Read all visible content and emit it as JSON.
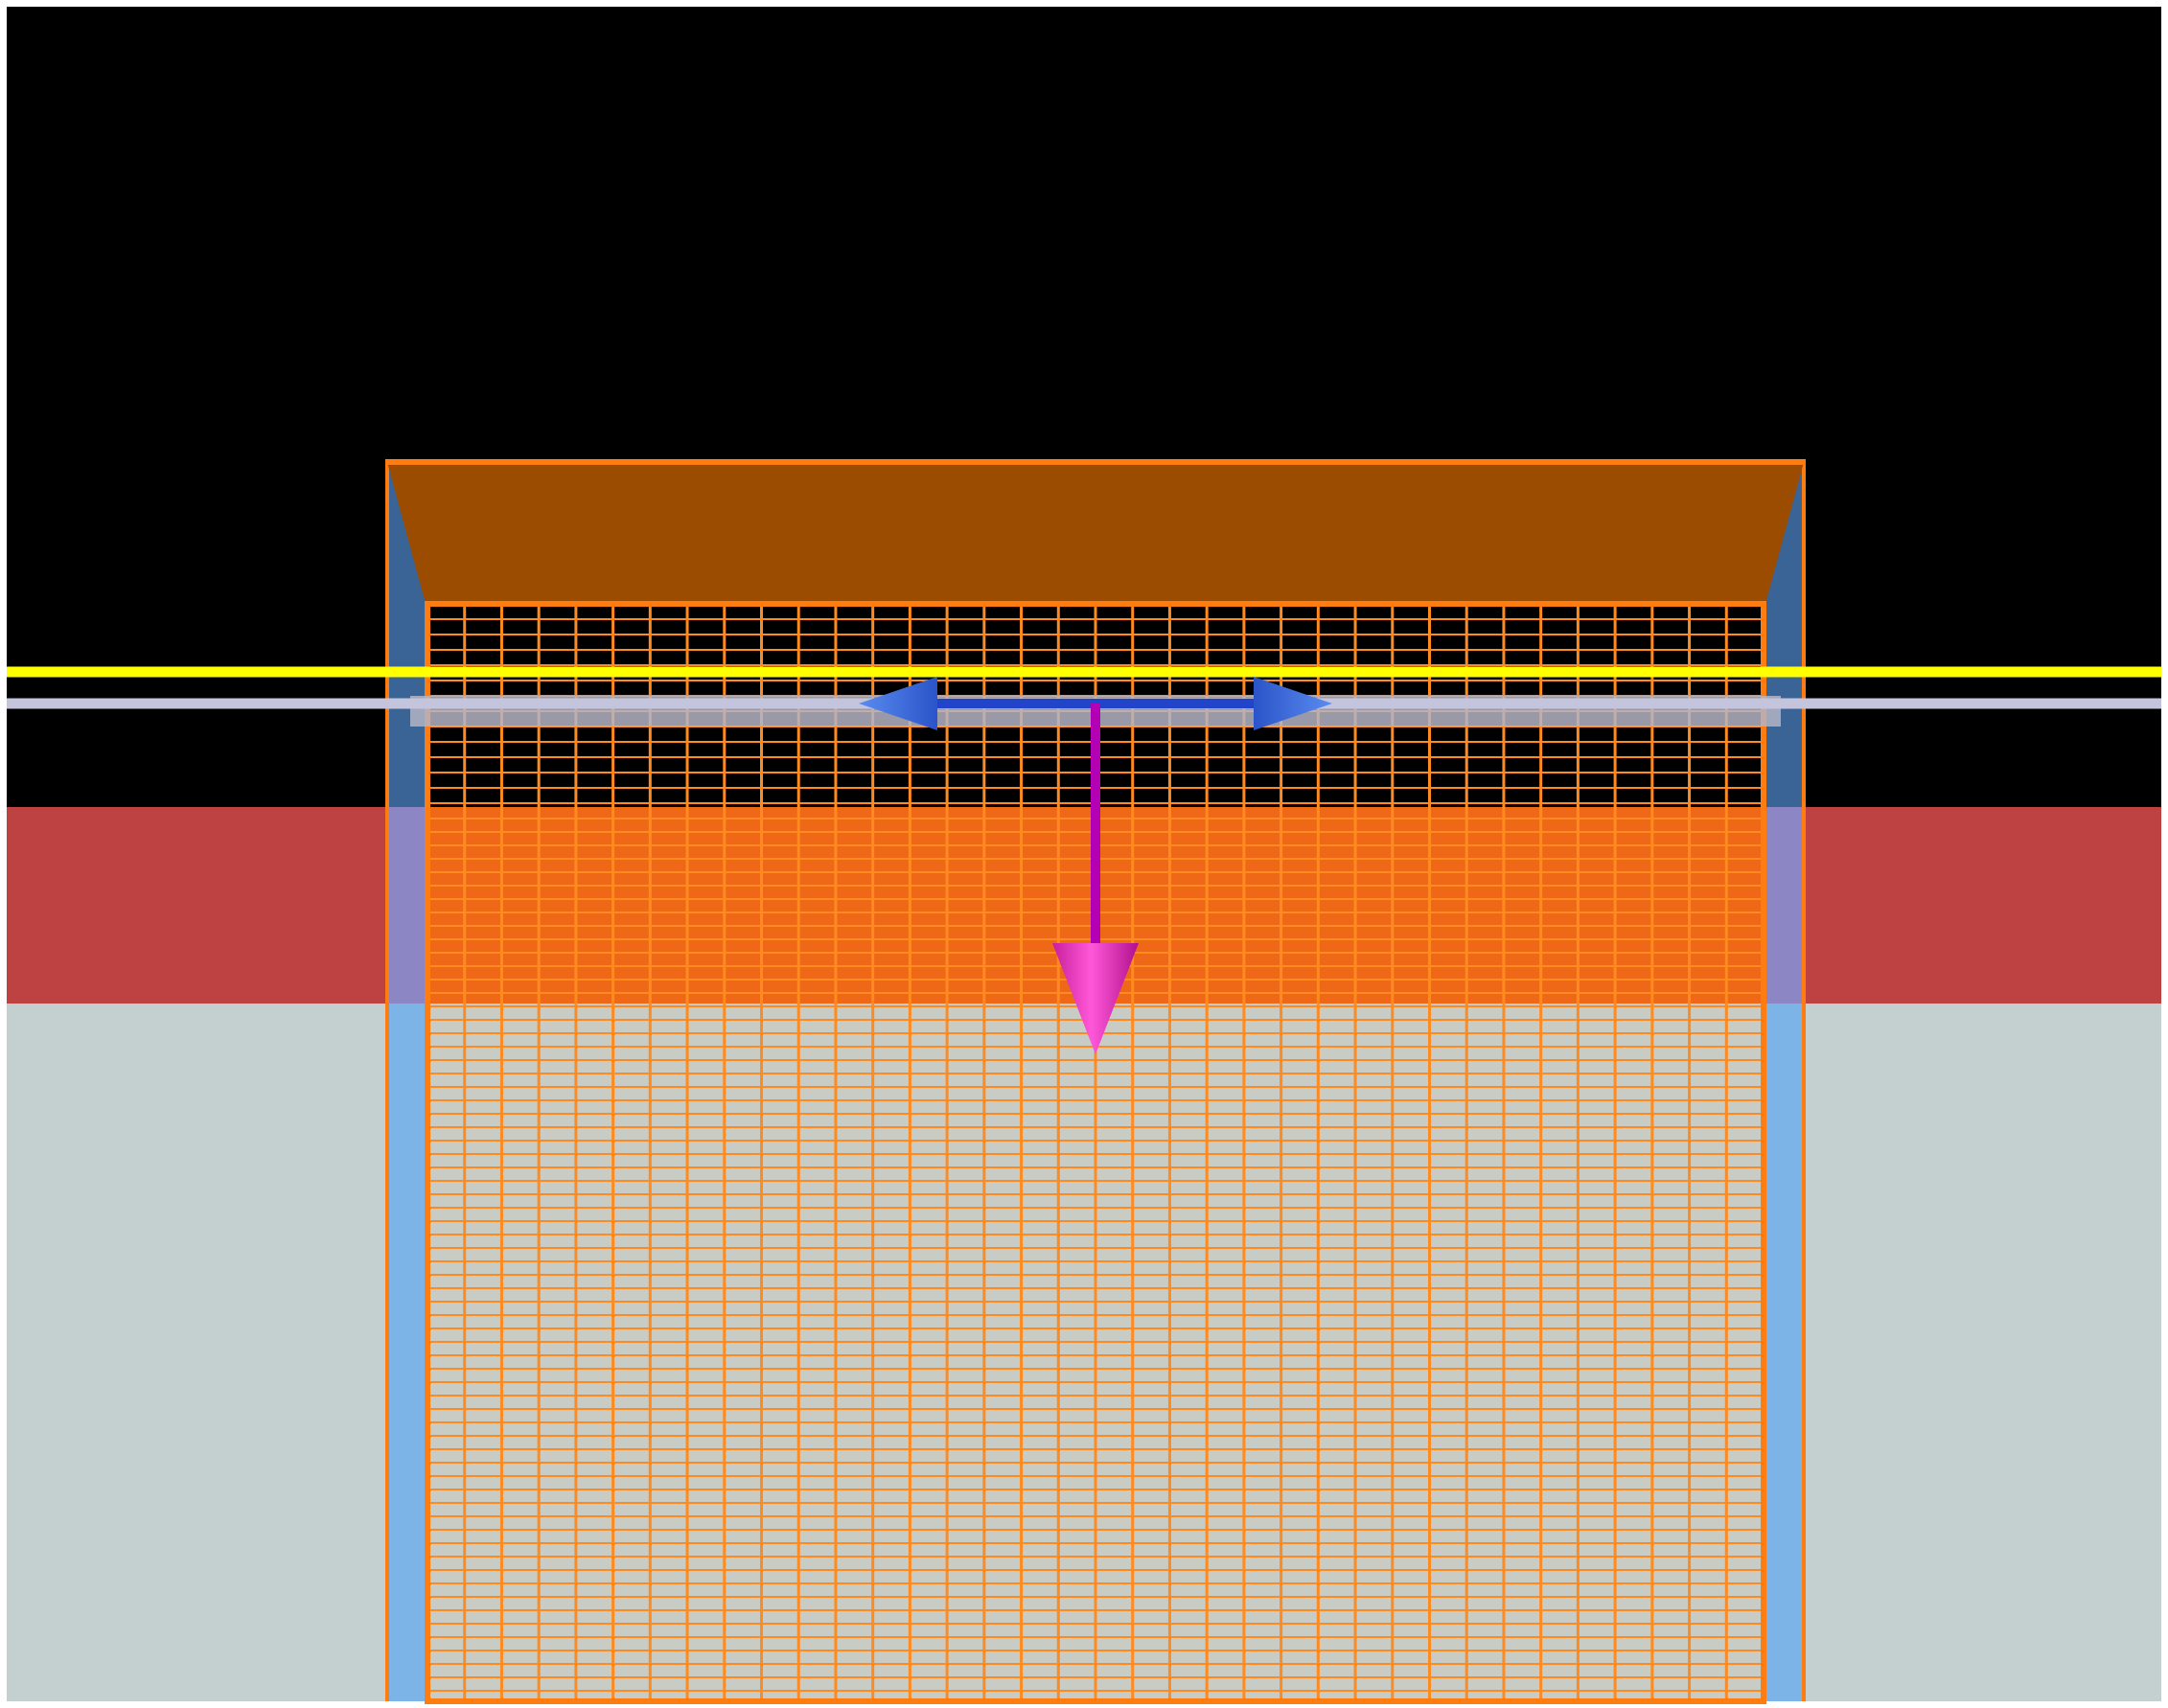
{
  "colors": {
    "frame": "#ffffff",
    "background": "#000000",
    "upper_layer": "#be4242",
    "lower_layer": "#c4d0d0",
    "wall": "#7cb4e8",
    "wall_dark": "#3a6496",
    "mesh": "#ff8a20",
    "mesh_outline": "#ff7c10",
    "funnel": "#9c4c00",
    "cover_band": "#b4b4c4",
    "line_yellow": "#ffff00",
    "line_lavender": "#c4c4dc",
    "arrow_blue": "#2244c8",
    "arrow_blue_head": "#3a6ce0",
    "arrow_magenta": "#b400b4",
    "arrow_magenta_head": "#ee40c4"
  },
  "icons": {
    "horizontal_axis": "double-arrow-icon",
    "vertical_axis": "down-arrow-icon"
  }
}
